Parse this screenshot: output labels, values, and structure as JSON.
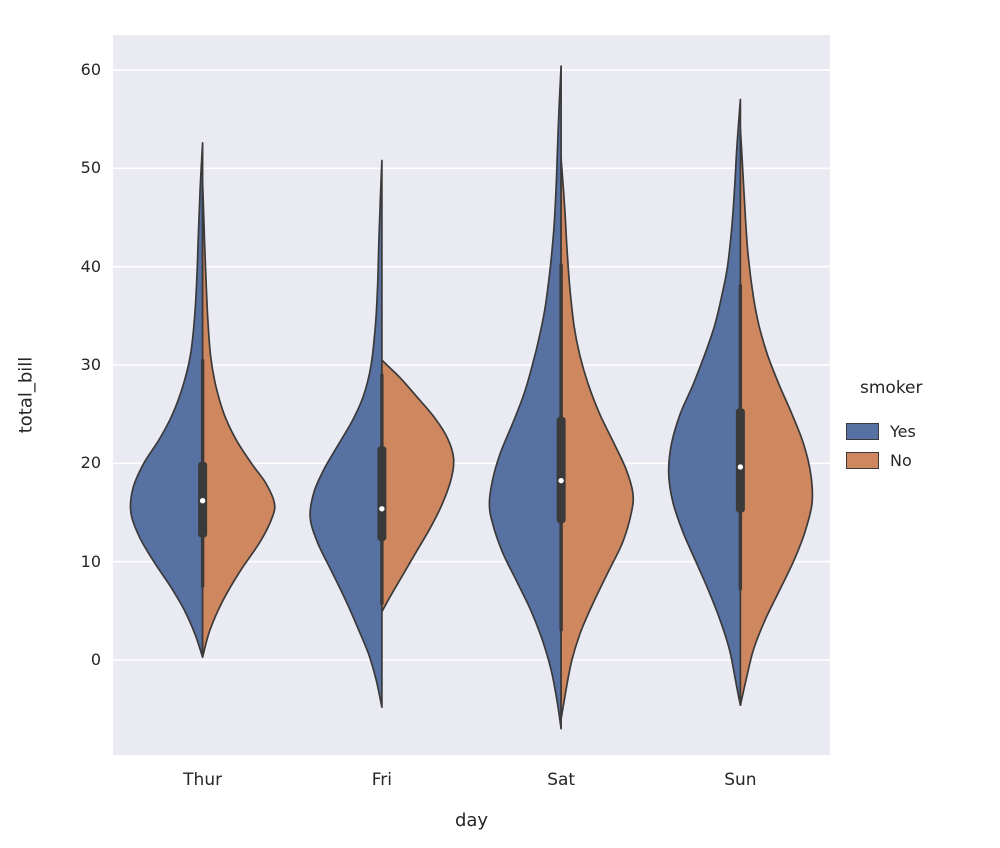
{
  "colors": {
    "figure_bg": "#ffffff",
    "plot_bg": "#eaeaf2",
    "grid": "#ffffff",
    "text": "#262626",
    "edge": "#3a3a3a",
    "violin_yes": "#5871a3",
    "violin_no": "#cf8760",
    "median_dot": "#ffffff"
  },
  "chart_data": {
    "type": "violin",
    "title": "",
    "xlabel": "day",
    "ylabel": "total_bill",
    "categories": [
      "Thur",
      "Fri",
      "Sat",
      "Sun"
    ],
    "y_ticks": [
      0,
      10,
      20,
      30,
      40,
      50,
      60
    ],
    "ylim": [
      -9.66,
      63.56
    ],
    "grid": true,
    "split": true,
    "legend": {
      "title": "smoker",
      "position": "right",
      "entries": [
        {
          "label": "Yes",
          "color": "#5871a3",
          "side": "left"
        },
        {
          "label": "No",
          "color": "#cf8760",
          "side": "right"
        }
      ]
    },
    "violins": [
      {
        "category": "Thur",
        "box": {
          "whisker_low": 7.51,
          "q1": 12.44,
          "median": 16.2,
          "q3": 20.16,
          "whisker_high": 30.46
        },
        "halves": [
          {
            "hue": "Yes",
            "side": "left",
            "profile": [
              [
                0.3,
                0
              ],
              [
                2.5,
                0.1
              ],
              [
                5,
                0.25
              ],
              [
                7.5,
                0.45
              ],
              [
                10,
                0.68
              ],
              [
                12.5,
                0.88
              ],
              [
                15,
                1.0
              ],
              [
                17.5,
                0.97
              ],
              [
                20,
                0.82
              ],
              [
                22.5,
                0.6
              ],
              [
                25,
                0.42
              ],
              [
                28,
                0.27
              ],
              [
                31,
                0.17
              ],
              [
                35,
                0.11
              ],
              [
                39,
                0.08
              ],
              [
                43,
                0.06
              ],
              [
                47,
                0.04
              ],
              [
                50,
                0.02
              ],
              [
                52.6,
                0
              ]
            ]
          },
          {
            "hue": "No",
            "side": "right",
            "profile": [
              [
                0.3,
                0
              ],
              [
                3,
                0.1
              ],
              [
                6,
                0.28
              ],
              [
                9,
                0.52
              ],
              [
                12,
                0.8
              ],
              [
                14.5,
                0.97
              ],
              [
                16,
                1.0
              ],
              [
                18,
                0.88
              ],
              [
                20,
                0.68
              ],
              [
                22.5,
                0.46
              ],
              [
                25,
                0.3
              ],
              [
                28,
                0.18
              ],
              [
                31,
                0.11
              ],
              [
                35,
                0.07
              ],
              [
                40,
                0.04
              ],
              [
                44,
                0.02
              ],
              [
                48.6,
                0
              ]
            ]
          }
        ]
      },
      {
        "category": "Fri",
        "box": {
          "whisker_low": 5.75,
          "q1": 12.1,
          "median": 15.38,
          "q3": 21.75,
          "whisker_high": 28.97
        },
        "halves": [
          {
            "hue": "Yes",
            "side": "left",
            "profile": [
              [
                -4.8,
                0
              ],
              [
                -2,
                0.08
              ],
              [
                0.5,
                0.18
              ],
              [
                3,
                0.32
              ],
              [
                6,
                0.5
              ],
              [
                9,
                0.7
              ],
              [
                12,
                0.9
              ],
              [
                14.5,
                1.0
              ],
              [
                17,
                0.95
              ],
              [
                19.5,
                0.8
              ],
              [
                22,
                0.6
              ],
              [
                24.5,
                0.4
              ],
              [
                27,
                0.25
              ],
              [
                30,
                0.15
              ],
              [
                34,
                0.09
              ],
              [
                38,
                0.06
              ],
              [
                43,
                0.04
              ],
              [
                47,
                0.02
              ],
              [
                50.8,
                0
              ]
            ]
          },
          {
            "hue": "No",
            "side": "right",
            "profile": [
              [
                4.9,
                0
              ],
              [
                6.5,
                0.12
              ],
              [
                8.5,
                0.28
              ],
              [
                11,
                0.48
              ],
              [
                13.5,
                0.68
              ],
              [
                16,
                0.85
              ],
              [
                18.5,
                0.97
              ],
              [
                20.5,
                1.0
              ],
              [
                22.5,
                0.92
              ],
              [
                24.5,
                0.75
              ],
              [
                26.5,
                0.52
              ],
              [
                28.5,
                0.28
              ],
              [
                29.8,
                0.1
              ],
              [
                30.5,
                0
              ]
            ]
          }
        ]
      },
      {
        "category": "Sat",
        "box": {
          "whisker_low": 3.07,
          "q1": 13.9,
          "median": 18.24,
          "q3": 24.74,
          "whisker_high": 40.17
        },
        "halves": [
          {
            "hue": "Yes",
            "side": "left",
            "profile": [
              [
                -7,
                0
              ],
              [
                -4,
                0.06
              ],
              [
                -1,
                0.14
              ],
              [
                2,
                0.26
              ],
              [
                5,
                0.42
              ],
              [
                8,
                0.62
              ],
              [
                11,
                0.82
              ],
              [
                14,
                0.96
              ],
              [
                16,
                1.0
              ],
              [
                18.5,
                0.95
              ],
              [
                21,
                0.85
              ],
              [
                24,
                0.68
              ],
              [
                27,
                0.52
              ],
              [
                30,
                0.4
              ],
              [
                33,
                0.3
              ],
              [
                36,
                0.22
              ],
              [
                40,
                0.15
              ],
              [
                44,
                0.1
              ],
              [
                48,
                0.07
              ],
              [
                52,
                0.05
              ],
              [
                56,
                0.03
              ],
              [
                60.4,
                0
              ]
            ]
          },
          {
            "hue": "No",
            "side": "right",
            "profile": [
              [
                -6,
                0
              ],
              [
                -3,
                0.07
              ],
              [
                0,
                0.15
              ],
              [
                3,
                0.28
              ],
              [
                6,
                0.46
              ],
              [
                9,
                0.66
              ],
              [
                12,
                0.86
              ],
              [
                15,
                0.98
              ],
              [
                17,
                1.0
              ],
              [
                19.5,
                0.9
              ],
              [
                22,
                0.74
              ],
              [
                25,
                0.54
              ],
              [
                28,
                0.38
              ],
              [
                31,
                0.26
              ],
              [
                34,
                0.18
              ],
              [
                38,
                0.12
              ],
              [
                42,
                0.08
              ],
              [
                46,
                0.05
              ],
              [
                51,
                0
              ]
            ]
          }
        ]
      },
      {
        "category": "Sun",
        "box": {
          "whisker_low": 7.25,
          "q1": 14.99,
          "median": 19.63,
          "q3": 25.6,
          "whisker_high": 38.07
        },
        "halves": [
          {
            "hue": "Yes",
            "side": "left",
            "profile": [
              [
                -4.6,
                0
              ],
              [
                -2,
                0.07
              ],
              [
                1,
                0.15
              ],
              [
                4,
                0.28
              ],
              [
                7,
                0.44
              ],
              [
                10,
                0.62
              ],
              [
                13,
                0.8
              ],
              [
                16,
                0.94
              ],
              [
                19,
                1.0
              ],
              [
                22,
                0.96
              ],
              [
                25,
                0.84
              ],
              [
                28,
                0.66
              ],
              [
                31,
                0.5
              ],
              [
                34,
                0.36
              ],
              [
                37,
                0.26
              ],
              [
                40,
                0.18
              ],
              [
                44,
                0.12
              ],
              [
                48,
                0.08
              ],
              [
                52,
                0.05
              ],
              [
                57,
                0
              ]
            ]
          },
          {
            "hue": "No",
            "side": "right",
            "profile": [
              [
                -4.6,
                0
              ],
              [
                -2,
                0.08
              ],
              [
                1,
                0.18
              ],
              [
                4,
                0.34
              ],
              [
                7,
                0.54
              ],
              [
                10,
                0.74
              ],
              [
                13,
                0.9
              ],
              [
                16,
                1.0
              ],
              [
                19,
                0.98
              ],
              [
                22,
                0.88
              ],
              [
                25,
                0.72
              ],
              [
                28,
                0.54
              ],
              [
                31,
                0.38
              ],
              [
                34,
                0.26
              ],
              [
                37,
                0.18
              ],
              [
                41,
                0.11
              ],
              [
                45,
                0.07
              ],
              [
                49,
                0.04
              ],
              [
                54,
                0
              ]
            ]
          }
        ]
      }
    ]
  }
}
